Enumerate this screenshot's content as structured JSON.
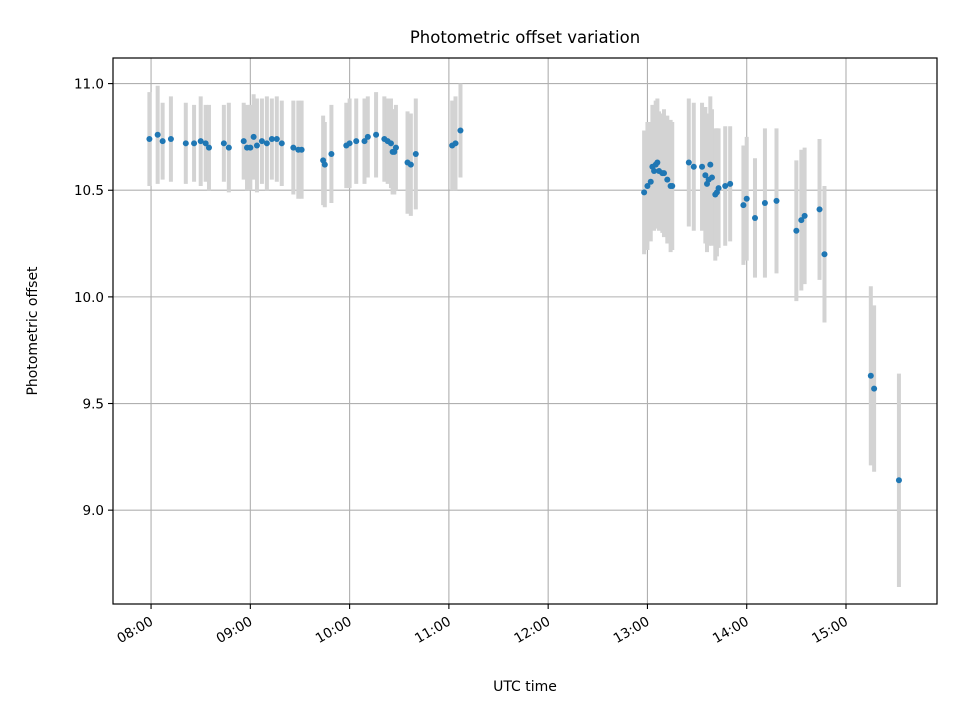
{
  "chart_data": {
    "type": "scatter",
    "title": "Photometric offset variation",
    "xlabel": "UTC time",
    "ylabel": "Photometric offset",
    "x_ticks": [
      "08:00",
      "09:00",
      "10:00",
      "11:00",
      "12:00",
      "13:00",
      "14:00",
      "15:00"
    ],
    "y_ticks": [
      "9.0",
      "9.5",
      "10.0",
      "10.5",
      "11.0"
    ],
    "y_tick_values": [
      9.0,
      9.5,
      10.0,
      10.5,
      11.0
    ],
    "xlim": [
      "07:37",
      "15:55"
    ],
    "ylim": [
      8.56,
      11.12
    ],
    "grid": true,
    "colors": {
      "marker": "#1f77b4",
      "errorbar": "#d3d3d3",
      "grid": "#b0b0b0"
    },
    "series": [
      {
        "x": [
          "07:59",
          "08:04",
          "08:07",
          "08:12",
          "08:21",
          "08:26",
          "08:30",
          "08:33",
          "08:35",
          "08:44",
          "08:47",
          "08:56",
          "08:58",
          "09:00",
          "09:02",
          "09:04",
          "09:07",
          "09:10",
          "09:13",
          "09:16",
          "09:19",
          "09:26",
          "09:29",
          "09:31",
          "09:44",
          "09:45",
          "09:49",
          "09:58",
          "10:00",
          "10:04",
          "10:09",
          "10:11",
          "10:16",
          "10:21",
          "10:23",
          "10:25",
          "10:26",
          "10:27",
          "10:28",
          "10:35",
          "10:37",
          "10:40",
          "11:02",
          "11:04",
          "11:07",
          "12:58",
          "13:00",
          "13:02",
          "13:03",
          "13:04",
          "13:05",
          "13:06",
          "13:07",
          "13:09",
          "13:10",
          "13:12",
          "13:14",
          "13:15",
          "13:25",
          "13:28",
          "13:33",
          "13:35",
          "13:36",
          "13:37",
          "13:38",
          "13:39",
          "13:41",
          "13:42",
          "13:43",
          "13:47",
          "13:50",
          "13:58",
          "14:00",
          "14:05",
          "14:11",
          "14:18",
          "14:30",
          "14:33",
          "14:35",
          "14:44"
        ],
        "y": [
          10.74,
          10.76,
          10.73,
          10.74,
          10.72,
          10.72,
          10.73,
          10.72,
          10.7,
          10.72,
          10.7,
          10.73,
          10.7,
          10.7,
          10.75,
          10.71,
          10.73,
          10.72,
          10.74,
          10.74,
          10.72,
          10.7,
          10.69,
          10.69,
          10.64,
          10.62,
          10.67,
          10.71,
          10.72,
          10.73,
          10.73,
          10.75,
          10.76,
          10.74,
          10.73,
          10.72,
          10.68,
          10.68,
          10.7,
          10.63,
          10.62,
          10.67,
          10.71,
          10.72,
          10.78,
          10.49,
          10.52,
          10.54,
          10.61,
          10.59,
          10.62,
          10.63,
          10.59,
          10.58,
          10.58,
          10.55,
          10.52,
          10.52,
          10.63,
          10.61,
          10.61,
          10.57,
          10.53,
          10.55,
          10.62,
          10.56,
          10.48,
          10.49,
          10.51,
          10.52,
          10.53,
          10.43,
          10.46,
          10.37,
          10.44,
          10.45,
          10.31,
          10.36,
          10.38,
          10.41
        ],
        "y_err": [
          0.22,
          0.23,
          0.18,
          0.2,
          0.19,
          0.18,
          0.21,
          0.18,
          0.2,
          0.18,
          0.21,
          0.18,
          0.2,
          0.2,
          0.2,
          0.22,
          0.2,
          0.22,
          0.19,
          0.2,
          0.2,
          0.22,
          0.23,
          0.23,
          0.21,
          0.2,
          0.23,
          0.2,
          0.21,
          0.2,
          0.2,
          0.19,
          0.2,
          0.2,
          0.2,
          0.21,
          0.2,
          0.2,
          0.2,
          0.24,
          0.24,
          0.26,
          0.21,
          0.22,
          0.22,
          0.29,
          0.3,
          0.28,
          0.29,
          0.28,
          0.3,
          0.3,
          0.28,
          0.28,
          0.3,
          0.3,
          0.31,
          0.3,
          0.3,
          0.3,
          0.3,
          0.32,
          0.32,
          0.31,
          0.32,
          0.32,
          0.31,
          0.3,
          0.28,
          0.28,
          0.27,
          0.28,
          0.29,
          0.28,
          0.35,
          0.34,
          0.33,
          0.33,
          0.32,
          0.33
        ]
      },
      {
        "x": [
          "14:47",
          "15:15",
          "15:17",
          "15:32"
        ],
        "y": [
          10.2,
          9.63,
          9.57,
          9.14
        ],
        "y_err": [
          0.32,
          0.42,
          0.39,
          0.5
        ]
      }
    ]
  }
}
